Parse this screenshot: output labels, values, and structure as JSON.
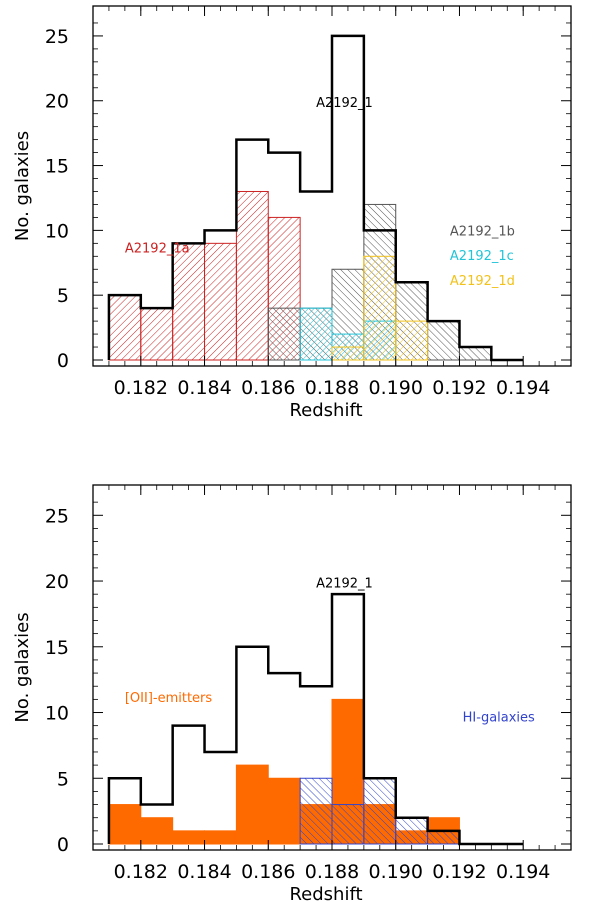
{
  "chart_data": [
    {
      "type": "histogram",
      "xlabel": "Redshift",
      "ylabel": "No. galaxies",
      "xlim": [
        0.1805,
        0.1955
      ],
      "ylim": [
        0,
        27
      ],
      "x_ticks": [
        "0.182",
        "0.184",
        "0.186",
        "0.188",
        "0.190",
        "0.192",
        "0.194"
      ],
      "y_ticks": [
        "0",
        "5",
        "10",
        "15",
        "20",
        "25"
      ],
      "bin_width": 0.001,
      "total": {
        "name": "A2192_1",
        "color": "#000000",
        "bins": [
          0.181,
          0.182,
          0.183,
          0.184,
          0.185,
          0.186,
          0.187,
          0.188,
          0.189,
          0.19,
          0.191,
          0.192,
          0.193
        ],
        "values": [
          5,
          4,
          9,
          10,
          17,
          16,
          13,
          25,
          10,
          6,
          3,
          1,
          0
        ]
      },
      "series": [
        {
          "name": "A2192_1a",
          "color": "#cc2222",
          "fill": "hatch",
          "bins": [
            0.181,
            0.182,
            0.183,
            0.184,
            0.185,
            0.186,
            0.187
          ],
          "values": [
            5,
            4,
            9,
            9,
            13,
            11,
            0
          ]
        },
        {
          "name": "A2192_1b",
          "color": "#555555",
          "fill": "hatch",
          "bins": [
            0.186,
            0.187,
            0.188,
            0.189,
            0.19,
            0.191,
            0.192,
            0.193
          ],
          "values": [
            4,
            4,
            7,
            12,
            6,
            3,
            1,
            0
          ]
        },
        {
          "name": "A2192_1c",
          "color": "#22c4d8",
          "fill": "hatch",
          "bins": [
            0.186,
            0.187,
            0.188,
            0.189
          ],
          "values": [
            0,
            4,
            2,
            3
          ]
        },
        {
          "name": "A2192_1d",
          "color": "#f2c21a",
          "fill": "hatch",
          "bins": [
            0.188,
            0.189,
            0.19
          ],
          "values": [
            1,
            8,
            3
          ]
        }
      ],
      "annotations": [
        {
          "text": "A2192_1",
          "color": "#000000",
          "x": 0.1875,
          "y": 19.5
        },
        {
          "text": "A2192_1a",
          "color": "#cc2222",
          "x": 0.1815,
          "y": 8.3
        },
        {
          "text": "A2192_1b",
          "color": "#555555",
          "x": 0.1917,
          "y": 9.6
        },
        {
          "text": "A2192_1c",
          "color": "#22c4d8",
          "x": 0.1917,
          "y": 7.7
        },
        {
          "text": "A2192_1d",
          "color": "#f2c21a",
          "x": 0.1917,
          "y": 5.8
        }
      ]
    },
    {
      "type": "histogram",
      "xlabel": "Redshift",
      "ylabel": "No. galaxies",
      "xlim": [
        0.1805,
        0.1955
      ],
      "ylim": [
        0,
        27
      ],
      "x_ticks": [
        "0.182",
        "0.184",
        "0.186",
        "0.188",
        "0.190",
        "0.192",
        "0.194"
      ],
      "y_ticks": [
        "0",
        "5",
        "10",
        "15",
        "20",
        "25"
      ],
      "bin_width": 0.001,
      "total": {
        "name": "A2192_1",
        "color": "#000000",
        "bins": [
          0.181,
          0.182,
          0.183,
          0.184,
          0.185,
          0.186,
          0.187,
          0.188,
          0.189,
          0.19,
          0.191,
          0.192,
          0.193
        ],
        "values": [
          5,
          3,
          9,
          7,
          15,
          13,
          12,
          19,
          5,
          2,
          1,
          0,
          0
        ]
      },
      "series": [
        {
          "name": "[OII]-emitters",
          "color": "#ff6a00",
          "fill": "solid",
          "bins": [
            0.181,
            0.182,
            0.183,
            0.184,
            0.185,
            0.186,
            0.187,
            0.188,
            0.189,
            0.19,
            0.191,
            0.192,
            0.193
          ],
          "values": [
            3,
            2,
            1,
            1,
            6,
            5,
            3,
            11,
            3,
            1,
            2,
            0,
            0
          ]
        },
        {
          "name": "HI-galaxies",
          "color": "#3344cc",
          "fill": "hatch",
          "bins": [
            0.186,
            0.187,
            0.188,
            0.189,
            0.19,
            0.191
          ],
          "values": [
            0,
            5,
            3,
            5,
            2,
            1
          ]
        }
      ],
      "annotations": [
        {
          "text": "A2192_1",
          "color": "#000000",
          "x": 0.1875,
          "y": 19.5
        },
        {
          "text": "[OII]-emitters",
          "color": "#ff6a00",
          "x": 0.1815,
          "y": 10.8
        },
        {
          "text": "HI-galaxies",
          "color": "#3344cc",
          "x": 0.1921,
          "y": 9.3
        }
      ]
    }
  ]
}
